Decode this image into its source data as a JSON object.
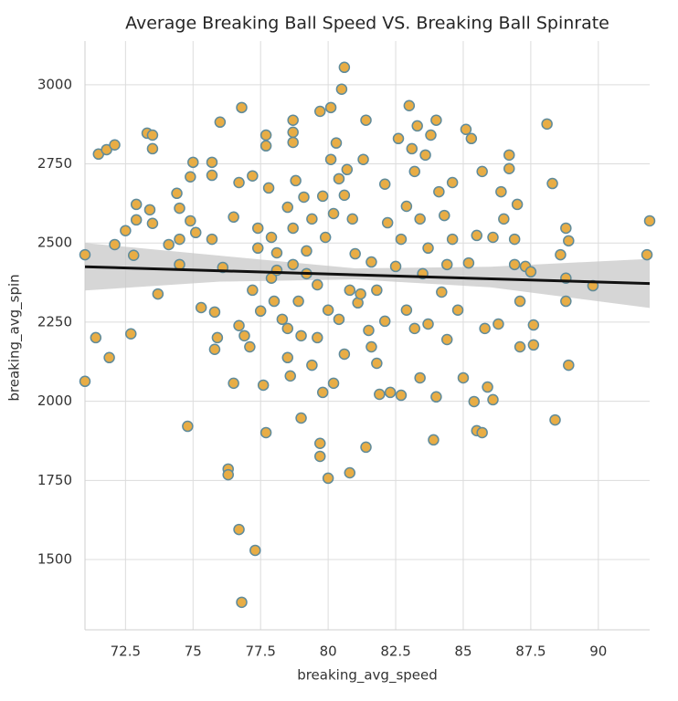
{
  "chart_data": {
    "type": "scatter",
    "title": "Average Breaking Ball Speed VS. Breaking Ball Spinrate",
    "x_label": "breaking_avg_speed",
    "y_label": "breaking_avg_spin",
    "xlim": [
      71,
      91.9
    ],
    "ylim": [
      1278,
      3138
    ],
    "xticks": [
      72.5,
      75.0,
      77.5,
      80.0,
      82.5,
      85.0,
      87.5,
      90.0
    ],
    "yticks": [
      1500,
      1750,
      2000,
      2250,
      2500,
      2750,
      3000
    ],
    "grid": true,
    "color": "#e8ad45",
    "edge_color": "#5f8b9b",
    "series": [
      {
        "name": "breaking balls",
        "x": [
          71.0,
          71.0,
          71.5,
          71.4,
          71.8,
          72.1,
          71.9,
          72.1,
          72.5,
          72.7,
          72.8,
          72.9,
          72.9,
          73.3,
          73.5,
          73.5,
          73.4,
          73.5,
          73.7,
          74.1,
          74.4,
          74.5,
          74.5,
          74.5,
          74.8,
          75.0,
          74.9,
          74.9,
          75.1,
          75.3,
          75.7,
          75.7,
          75.7,
          75.8,
          75.8,
          75.9,
          76.0,
          76.1,
          76.3,
          76.3,
          76.5,
          76.5,
          76.7,
          76.7,
          76.8,
          76.8,
          76.7,
          76.9,
          77.1,
          77.2,
          77.2,
          77.3,
          77.4,
          77.4,
          77.5,
          77.6,
          77.7,
          77.7,
          77.7,
          77.8,
          77.9,
          77.9,
          78.0,
          78.1,
          78.1,
          78.3,
          78.5,
          78.5,
          78.5,
          78.6,
          78.7,
          78.7,
          78.7,
          78.7,
          78.7,
          78.8,
          78.9,
          79.0,
          79.0,
          79.1,
          79.2,
          79.2,
          79.4,
          79.4,
          79.6,
          79.6,
          79.7,
          79.7,
          79.7,
          79.8,
          79.8,
          79.9,
          80.0,
          80.0,
          80.1,
          80.1,
          80.2,
          80.2,
          80.3,
          80.4,
          80.4,
          80.5,
          80.6,
          80.6,
          80.6,
          80.7,
          80.8,
          80.8,
          80.9,
          81.0,
          81.1,
          81.2,
          81.3,
          81.4,
          81.4,
          81.5,
          81.6,
          81.6,
          81.8,
          81.8,
          81.9,
          82.1,
          82.1,
          82.2,
          82.3,
          82.5,
          82.6,
          82.7,
          82.7,
          82.9,
          82.9,
          83.0,
          83.1,
          83.2,
          83.2,
          83.3,
          83.4,
          83.4,
          83.5,
          83.6,
          83.7,
          83.7,
          83.8,
          83.9,
          84.0,
          84.0,
          84.1,
          84.2,
          84.3,
          84.4,
          84.4,
          84.6,
          84.6,
          84.8,
          85.0,
          85.1,
          85.2,
          85.3,
          85.4,
          85.5,
          85.5,
          85.7,
          85.7,
          85.8,
          85.9,
          86.1,
          86.1,
          86.3,
          86.4,
          86.5,
          86.7,
          86.7,
          86.9,
          86.9,
          87.0,
          87.1,
          87.1,
          87.3,
          87.5,
          87.6,
          87.6,
          88.1,
          88.3,
          88.4,
          88.6,
          88.8,
          88.8,
          88.8,
          88.9,
          88.9,
          89.8,
          91.9,
          91.8
        ],
        "values": [
          2463,
          2063,
          2781,
          2201,
          2795,
          2810,
          2138,
          2495,
          2539,
          2213,
          2461,
          2622,
          2573,
          2847,
          2841,
          2798,
          2605,
          2562,
          2339,
          2495,
          2657,
          2610,
          2512,
          2432,
          1921,
          2755,
          2709,
          2570,
          2533,
          2296,
          2755,
          2512,
          2714,
          2282,
          2164,
          2201,
          2882,
          2423,
          1786,
          1768,
          2057,
          2582,
          2691,
          1595,
          2928,
          1365,
          2239,
          2207,
          2172,
          2712,
          2351,
          1529,
          2484,
          2547,
          2285,
          2051,
          2841,
          2807,
          1901,
          2674,
          2518,
          2389,
          2316,
          2469,
          2414,
          2259,
          2230,
          2613,
          2138,
          2080,
          2850,
          2818,
          2888,
          2547,
          2432,
          2697,
          2316,
          2207,
          1947,
          2645,
          2475,
          2403,
          2576,
          2114,
          2201,
          2368,
          1826,
          1867,
          2916,
          2648,
          2028,
          2518,
          2288,
          1757,
          2928,
          2764,
          2593,
          2057,
          2816,
          2703,
          2259,
          2986,
          3055,
          2651,
          2149,
          2732,
          2351,
          1774,
          2576,
          2466,
          2311,
          2339,
          2764,
          2888,
          1855,
          2224,
          2172,
          2440,
          2120,
          2351,
          2022,
          2686,
          2253,
          2564,
          2028,
          2426,
          2830,
          2019,
          2512,
          2616,
          2288,
          2934,
          2798,
          2230,
          2726,
          2870,
          2074,
          2576,
          2403,
          2778,
          2484,
          2244,
          2841,
          1878,
          2888,
          2014,
          2662,
          2345,
          2587,
          2195,
          2432,
          2691,
          2512,
          2288,
          2074,
          2859,
          2437,
          2830,
          1999,
          1907,
          2524,
          2726,
          1901,
          2230,
          2045,
          2005,
          2518,
          2244,
          2662,
          2576,
          2735,
          2778,
          2432,
          2512,
          2622,
          2172,
          2316,
          2426,
          2409,
          2178,
          2241,
          2876,
          2688,
          1941,
          2463,
          2316,
          2389,
          2547,
          2507,
          2114,
          2365,
          2570,
          2463
        ]
      }
    ],
    "regression": {
      "color": "#111111",
      "x": [
        71,
        91.9
      ],
      "values": [
        2425,
        2372
      ]
    },
    "confidence_band": {
      "color": "#c8c8c8",
      "x": [
        71,
        76,
        81,
        86,
        91.9
      ],
      "lower": [
        2350,
        2378,
        2385,
        2360,
        2295
      ],
      "upper": [
        2500,
        2460,
        2420,
        2425,
        2450
      ]
    }
  }
}
